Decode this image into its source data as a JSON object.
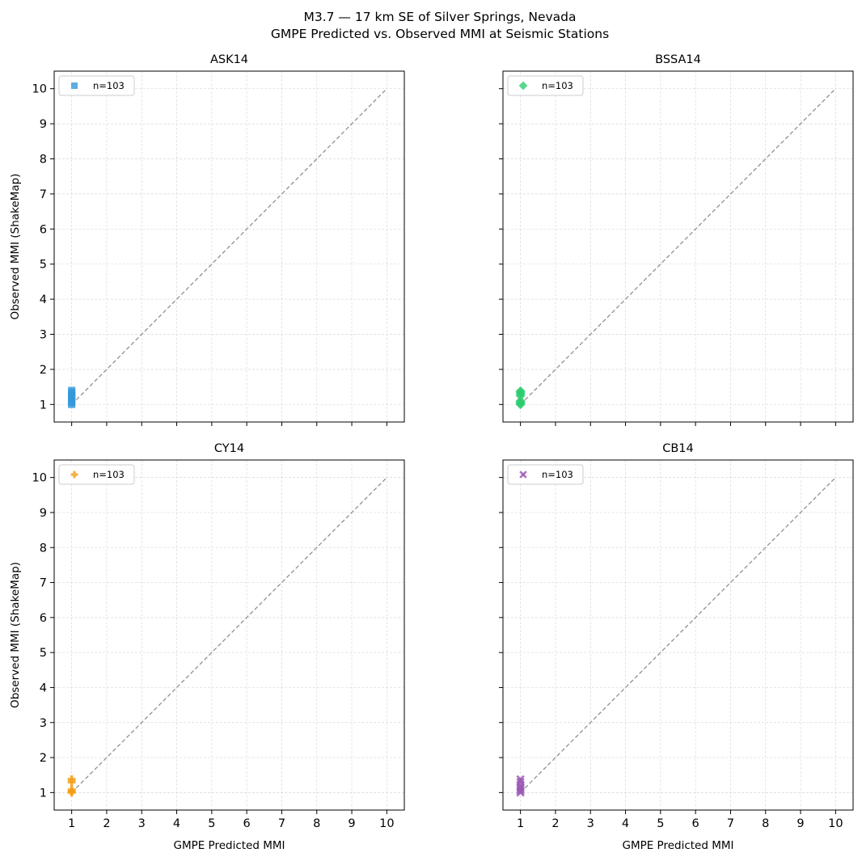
{
  "figure": {
    "title_line1": "M3.7 — 17 km SE of Silver Springs, Nevada",
    "title_line2": "GMPE Predicted vs. Observed MMI at Seismic Stations"
  },
  "chart_data": [
    {
      "type": "scatter",
      "title": "ASK14",
      "xlabel": "",
      "ylabel": "Observed MMI (ShakeMap)",
      "xlim": [
        0.5,
        10.5
      ],
      "ylim": [
        0.5,
        10.5
      ],
      "xticks": [
        1,
        2,
        3,
        4,
        5,
        6,
        7,
        8,
        9,
        10
      ],
      "yticks": [
        1,
        2,
        3,
        4,
        5,
        6,
        7,
        8,
        9,
        10
      ],
      "show_x_tick_labels": false,
      "show_y_tick_labels": true,
      "grid": true,
      "legend_position": "top-left",
      "reference_line": {
        "from": [
          1,
          1
        ],
        "to": [
          10,
          10
        ],
        "style": "dashed",
        "color": "#888888"
      },
      "series": [
        {
          "name": "n=103",
          "marker": "square",
          "color": "#3498db",
          "points": [
            [
              1,
              1.0
            ],
            [
              1,
              1.05
            ],
            [
              1,
              1.1
            ],
            [
              1,
              1.15
            ],
            [
              1,
              1.2
            ],
            [
              1,
              1.25
            ],
            [
              1,
              1.3
            ],
            [
              1,
              1.35
            ],
            [
              1,
              1.4
            ]
          ]
        }
      ]
    },
    {
      "type": "scatter",
      "title": "BSSA14",
      "xlabel": "",
      "ylabel": "",
      "xlim": [
        0.5,
        10.5
      ],
      "ylim": [
        0.5,
        10.5
      ],
      "xticks": [
        1,
        2,
        3,
        4,
        5,
        6,
        7,
        8,
        9,
        10
      ],
      "yticks": [
        1,
        2,
        3,
        4,
        5,
        6,
        7,
        8,
        9,
        10
      ],
      "show_x_tick_labels": false,
      "show_y_tick_labels": false,
      "grid": true,
      "legend_position": "top-left",
      "reference_line": {
        "from": [
          1,
          1
        ],
        "to": [
          10,
          10
        ],
        "style": "dashed",
        "color": "#888888"
      },
      "series": [
        {
          "name": "n=103",
          "marker": "diamond",
          "color": "#2ecc71",
          "points": [
            [
              1,
              1.0
            ],
            [
              1,
              1.03
            ],
            [
              1,
              1.07
            ],
            [
              1,
              1.1
            ],
            [
              1,
              1.25
            ],
            [
              1,
              1.3
            ],
            [
              1,
              1.35
            ],
            [
              1,
              1.38
            ]
          ]
        }
      ]
    },
    {
      "type": "scatter",
      "title": "CY14",
      "xlabel": "GMPE Predicted MMI",
      "ylabel": "Observed MMI (ShakeMap)",
      "xlim": [
        0.5,
        10.5
      ],
      "ylim": [
        0.5,
        10.5
      ],
      "xticks": [
        1,
        2,
        3,
        4,
        5,
        6,
        7,
        8,
        9,
        10
      ],
      "yticks": [
        1,
        2,
        3,
        4,
        5,
        6,
        7,
        8,
        9,
        10
      ],
      "show_x_tick_labels": true,
      "show_y_tick_labels": true,
      "grid": true,
      "legend_position": "top-left",
      "reference_line": {
        "from": [
          1,
          1
        ],
        "to": [
          10,
          10
        ],
        "style": "dashed",
        "color": "#888888"
      },
      "series": [
        {
          "name": "n=103",
          "marker": "plus",
          "color": "#f39c12",
          "points": [
            [
              1,
              1.0
            ],
            [
              1,
              1.04
            ],
            [
              1,
              1.08
            ],
            [
              1,
              1.3
            ],
            [
              1,
              1.38
            ]
          ]
        }
      ]
    },
    {
      "type": "scatter",
      "title": "CB14",
      "xlabel": "GMPE Predicted MMI",
      "ylabel": "",
      "xlim": [
        0.5,
        10.5
      ],
      "ylim": [
        0.5,
        10.5
      ],
      "xticks": [
        1,
        2,
        3,
        4,
        5,
        6,
        7,
        8,
        9,
        10
      ],
      "yticks": [
        1,
        2,
        3,
        4,
        5,
        6,
        7,
        8,
        9,
        10
      ],
      "show_x_tick_labels": true,
      "show_y_tick_labels": false,
      "grid": true,
      "legend_position": "top-left",
      "reference_line": {
        "from": [
          1,
          1
        ],
        "to": [
          10,
          10
        ],
        "style": "dashed",
        "color": "#888888"
      },
      "series": [
        {
          "name": "n=103",
          "marker": "x",
          "color": "#9b59b6",
          "points": [
            [
              1,
              1.0
            ],
            [
              1,
              1.05
            ],
            [
              1,
              1.1
            ],
            [
              1,
              1.15
            ],
            [
              1,
              1.2
            ],
            [
              1,
              1.3
            ],
            [
              1,
              1.38
            ]
          ]
        }
      ]
    }
  ]
}
